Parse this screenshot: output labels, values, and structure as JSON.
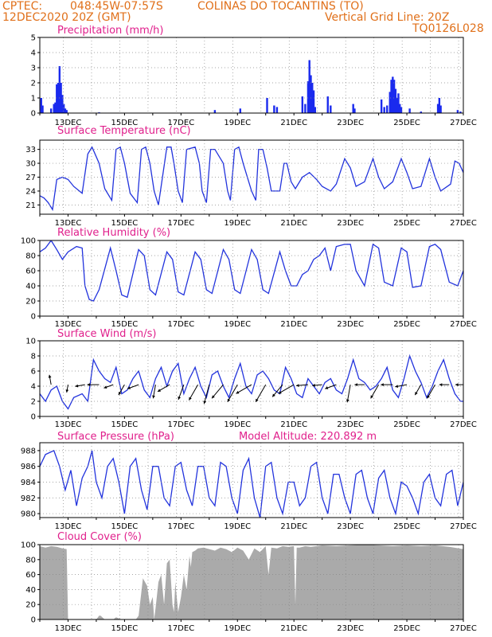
{
  "header": {
    "source": "CPTEC:",
    "coords": "048:45W-07:57S",
    "location": "COLINAS DO TOCANTINS (TO)",
    "datetime": "12DEC2020 20Z (GMT)",
    "grid_note": "Vertical Grid Line: 20Z",
    "run_code": "TQ0126L028"
  },
  "colors": {
    "header": "#e0701a",
    "title": "#e0208c",
    "line": "#2233dd",
    "bar": "#1a2aee",
    "cloud": "#aaaaaa"
  },
  "x_axis": {
    "start_day": 12,
    "end_day": 27,
    "tick_labels": [
      "13DEC",
      "15DEC",
      "17DEC",
      "19DEC",
      "21DEC",
      "23DEC",
      "25DEC",
      "27DEC"
    ]
  },
  "chart_data": [
    {
      "type": "bar",
      "title": "Precipitation (mm/h)",
      "ylim": [
        0,
        5
      ],
      "yticks": [
        "0",
        "1",
        "2",
        "3",
        "4",
        "5"
      ],
      "x": [
        12.05,
        12.1,
        12.4,
        12.5,
        12.55,
        12.6,
        12.65,
        12.7,
        12.75,
        12.8,
        12.85,
        12.9,
        12.95,
        14.1,
        18.2,
        19.1,
        20.05,
        20.3,
        20.4,
        21.3,
        21.4,
        21.5,
        21.55,
        21.6,
        21.65,
        21.7,
        21.75,
        22.2,
        22.3,
        23.1,
        23.15,
        24.1,
        24.2,
        24.3,
        24.4,
        24.45,
        24.5,
        24.55,
        24.6,
        24.65,
        24.7,
        24.75,
        24.8,
        25.1,
        25.5,
        26.1,
        26.15,
        26.2,
        26.8,
        26.9
      ],
      "values": [
        1.0,
        0.5,
        0.3,
        0.6,
        0.7,
        1.9,
        2.0,
        3.1,
        2.0,
        1.2,
        0.6,
        0.3,
        0.2,
        0.05,
        0.2,
        0.3,
        1.0,
        0.5,
        0.4,
        1.1,
        0.6,
        2.1,
        3.5,
        2.5,
        2.0,
        1.5,
        0.4,
        1.1,
        0.5,
        0.6,
        0.3,
        0.9,
        0.4,
        0.5,
        1.4,
        2.2,
        2.4,
        2.2,
        1.6,
        1.0,
        1.3,
        0.6,
        0.4,
        0.3,
        0.1,
        0.6,
        1.0,
        0.5,
        0.2,
        0.1
      ]
    },
    {
      "type": "line",
      "title": "Surface Temperature (nC)",
      "ylim": [
        19,
        35
      ],
      "yticks": [
        "21",
        "24",
        "27",
        "30",
        "33"
      ],
      "x": [
        12.0,
        12.15,
        12.3,
        12.45,
        12.6,
        12.8,
        13.0,
        13.2,
        13.5,
        13.7,
        13.85,
        14.1,
        14.3,
        14.55,
        14.7,
        14.85,
        15.0,
        15.2,
        15.45,
        15.6,
        15.75,
        15.9,
        16.05,
        16.2,
        16.5,
        16.65,
        16.75,
        16.9,
        17.05,
        17.2,
        17.5,
        17.65,
        17.75,
        17.9,
        18.05,
        18.2,
        18.5,
        18.65,
        18.75,
        18.9,
        19.05,
        19.2,
        19.5,
        19.65,
        19.75,
        19.9,
        20.05,
        20.2,
        20.5,
        20.65,
        20.75,
        20.9,
        21.05,
        21.3,
        21.55,
        21.8,
        22.0,
        22.3,
        22.5,
        22.8,
        23.0,
        23.2,
        23.5,
        23.8,
        24.0,
        24.2,
        24.5,
        24.8,
        25.0,
        25.2,
        25.5,
        25.8,
        26.0,
        26.2,
        26.55,
        26.7,
        26.85,
        27.0
      ],
      "values": [
        23,
        22.5,
        21.5,
        20,
        26.5,
        27,
        26.5,
        25,
        23.5,
        32,
        33.5,
        30,
        24.5,
        22,
        33,
        33.5,
        30,
        23.5,
        21.5,
        33,
        33.5,
        30,
        24,
        21,
        33.5,
        33.5,
        30,
        24,
        21.5,
        33,
        33.5,
        30,
        24,
        21.5,
        33,
        33,
        30,
        24,
        22,
        33,
        33.5,
        30,
        24,
        22,
        33,
        33,
        29,
        24,
        24,
        30,
        30,
        26,
        24.5,
        27,
        28,
        26.5,
        25,
        24,
        25.5,
        31,
        29,
        25,
        26,
        31,
        27,
        24.5,
        26,
        31,
        28,
        24.5,
        25,
        31,
        27,
        24,
        25.5,
        30.5,
        30,
        28
      ]
    },
    {
      "type": "line",
      "title": "Relative Humidity (%)",
      "ylim": [
        0,
        100
      ],
      "yticks": [
        "0",
        "20",
        "40",
        "60",
        "80",
        "100"
      ],
      "x": [
        12.0,
        12.2,
        12.4,
        12.6,
        12.8,
        13.0,
        13.3,
        13.5,
        13.6,
        13.75,
        13.9,
        14.1,
        14.5,
        14.7,
        14.9,
        15.1,
        15.5,
        15.7,
        15.9,
        16.1,
        16.5,
        16.7,
        16.9,
        17.1,
        17.5,
        17.7,
        17.9,
        18.1,
        18.5,
        18.7,
        18.9,
        19.1,
        19.5,
        19.7,
        19.9,
        20.1,
        20.5,
        20.7,
        20.9,
        21.1,
        21.3,
        21.5,
        21.7,
        21.9,
        22.1,
        22.3,
        22.5,
        22.8,
        23.0,
        23.2,
        23.5,
        23.8,
        24.0,
        24.2,
        24.5,
        24.8,
        25.0,
        25.2,
        25.5,
        25.8,
        26.0,
        26.2,
        26.5,
        26.8,
        27.0
      ],
      "values": [
        85,
        90,
        100,
        88,
        75,
        85,
        92,
        90,
        40,
        22,
        20,
        35,
        90,
        60,
        28,
        25,
        88,
        80,
        35,
        28,
        85,
        75,
        32,
        28,
        85,
        75,
        35,
        30,
        88,
        75,
        35,
        30,
        88,
        75,
        35,
        30,
        85,
        60,
        40,
        40,
        55,
        60,
        75,
        80,
        90,
        60,
        92,
        95,
        95,
        60,
        40,
        95,
        90,
        45,
        40,
        90,
        85,
        38,
        40,
        92,
        95,
        88,
        45,
        40,
        60
      ]
    },
    {
      "type": "line",
      "title": "Surface Wind (m/s)",
      "ylim": [
        0,
        10
      ],
      "yticks": [
        "0",
        "2",
        "4",
        "6",
        "8",
        "10"
      ],
      "x": [
        12.0,
        12.2,
        12.4,
        12.6,
        12.8,
        13.0,
        13.2,
        13.5,
        13.7,
        13.9,
        14.1,
        14.3,
        14.5,
        14.7,
        14.9,
        15.1,
        15.3,
        15.5,
        15.7,
        15.9,
        16.1,
        16.3,
        16.5,
        16.7,
        16.9,
        17.1,
        17.3,
        17.5,
        17.7,
        17.9,
        18.1,
        18.3,
        18.5,
        18.7,
        18.9,
        19.1,
        19.3,
        19.5,
        19.7,
        19.9,
        20.1,
        20.3,
        20.5,
        20.7,
        20.9,
        21.1,
        21.3,
        21.5,
        21.7,
        21.9,
        22.1,
        22.3,
        22.5,
        22.7,
        22.9,
        23.1,
        23.3,
        23.5,
        23.7,
        23.9,
        24.1,
        24.3,
        24.5,
        24.7,
        24.9,
        25.1,
        25.3,
        25.5,
        25.7,
        25.9,
        26.1,
        26.3,
        26.5,
        26.7,
        26.9,
        27.0
      ],
      "values": [
        3,
        2,
        3.5,
        4,
        2,
        1,
        2.5,
        3,
        2,
        7.5,
        6,
        5,
        4.5,
        6.5,
        3,
        3.5,
        5,
        6,
        3.5,
        2.5,
        5,
        6.5,
        4,
        6,
        7,
        3,
        5,
        6.5,
        4,
        2.5,
        5.5,
        6,
        4,
        2.5,
        5,
        7,
        4,
        3,
        5.5,
        6,
        5,
        3.5,
        3,
        6.5,
        5,
        3,
        2.5,
        5,
        4,
        3,
        4.5,
        5,
        3.5,
        3,
        5,
        7.5,
        5,
        4.5,
        3.5,
        4,
        5,
        6.5,
        3.5,
        2.5,
        5,
        8,
        6,
        4.5,
        2.5,
        4,
        6,
        7.5,
        5,
        3,
        2,
        2
      ],
      "barbs_day": [
        12.4,
        13.0,
        13.6,
        14.1,
        14.6,
        15.0,
        15.5,
        16.1,
        16.6,
        17.1,
        17.6,
        18.0,
        18.5,
        19.0,
        19.5,
        20.0,
        20.6,
        21.0,
        21.5,
        22.0,
        22.5,
        23.0,
        23.5,
        24.0,
        24.5,
        25.0,
        25.5,
        26.0,
        26.5,
        27.0
      ],
      "barbs_from_deg": [
        170,
        10,
        80,
        90,
        70,
        30,
        70,
        10,
        60,
        20,
        30,
        15,
        40,
        30,
        60,
        30,
        40,
        60,
        85,
        85,
        70,
        10,
        90,
        30,
        90,
        80,
        30,
        30,
        90,
        90
      ],
      "barbs_speed": [
        2.5,
        2,
        2.5,
        3,
        2.5,
        3,
        3,
        3.5,
        3.5,
        4,
        4.5,
        5,
        4.5,
        5,
        4.5,
        5,
        4,
        4.5,
        3,
        2.5,
        3,
        4.5,
        2.5,
        4,
        3,
        3,
        3,
        4,
        2.5,
        2
      ]
    },
    {
      "type": "line",
      "title": "Surface Pressure (hPa)",
      "subtitle": "Model Altitude: 220.892 m",
      "ylim": [
        979.5,
        989
      ],
      "yticks": [
        "980",
        "982",
        "984",
        "986",
        "988"
      ],
      "x": [
        12.0,
        12.2,
        12.5,
        12.7,
        12.9,
        13.1,
        13.3,
        13.5,
        13.7,
        13.85,
        14.0,
        14.2,
        14.4,
        14.6,
        14.8,
        15.0,
        15.2,
        15.4,
        15.6,
        15.8,
        16.0,
        16.2,
        16.4,
        16.6,
        16.8,
        17.0,
        17.2,
        17.4,
        17.6,
        17.8,
        18.0,
        18.2,
        18.4,
        18.6,
        18.8,
        19.0,
        19.2,
        19.4,
        19.6,
        19.8,
        20.0,
        20.2,
        20.4,
        20.6,
        20.8,
        21.0,
        21.2,
        21.4,
        21.6,
        21.8,
        22.0,
        22.2,
        22.4,
        22.6,
        22.8,
        23.0,
        23.2,
        23.4,
        23.6,
        23.8,
        24.0,
        24.2,
        24.4,
        24.6,
        24.8,
        25.0,
        25.2,
        25.4,
        25.6,
        25.8,
        26.0,
        26.2,
        26.4,
        26.6,
        26.8,
        27.0
      ],
      "values": [
        986,
        987.5,
        988,
        986,
        983,
        985.5,
        981,
        984.5,
        986,
        988,
        984,
        982,
        986,
        987,
        984,
        980,
        986,
        987,
        983,
        980.5,
        986,
        986,
        982,
        981,
        986,
        986.5,
        983,
        981,
        986,
        986,
        982,
        981,
        986.5,
        986,
        982,
        980,
        985.5,
        987,
        982,
        979.5,
        986,
        986.5,
        982,
        980,
        984,
        984,
        981,
        982,
        986,
        986.5,
        982,
        980,
        985,
        985,
        982,
        980,
        985,
        985.5,
        982,
        980,
        984.5,
        985.5,
        982,
        980,
        984,
        983.5,
        982,
        980,
        984,
        985,
        982,
        981,
        985,
        985.5,
        981,
        984
      ]
    },
    {
      "type": "area",
      "title": "Cloud Cover (%)",
      "ylim": [
        0,
        100
      ],
      "yticks": [
        "0",
        "20",
        "40",
        "60",
        "80",
        "100"
      ],
      "x": [
        12.0,
        12.2,
        12.4,
        12.6,
        12.8,
        12.95,
        13.0,
        13.5,
        14.0,
        14.1,
        14.15,
        14.3,
        14.5,
        14.6,
        14.7,
        14.9,
        15.0,
        15.4,
        15.5,
        15.6,
        15.65,
        15.8,
        15.9,
        16.0,
        16.05,
        16.1,
        16.2,
        16.3,
        16.4,
        16.5,
        16.6,
        16.7,
        16.75,
        16.8,
        16.9,
        17.0,
        17.1,
        17.2,
        17.3,
        17.35,
        17.4,
        17.5,
        17.6,
        17.8,
        18.0,
        18.2,
        18.4,
        18.6,
        18.8,
        19.0,
        19.2,
        19.4,
        19.6,
        19.8,
        20.0,
        20.1,
        20.2,
        20.4,
        20.6,
        20.8,
        21.0,
        21.05,
        21.1,
        21.2,
        21.4,
        21.6,
        21.8,
        22.0,
        22.5,
        23.0,
        23.5,
        24.0,
        24.5,
        25.0,
        25.5,
        26.0,
        26.5,
        27.0
      ],
      "values": [
        98,
        96,
        98,
        97,
        95,
        94,
        0,
        0,
        0,
        5,
        5,
        0,
        0,
        0,
        3,
        0,
        0,
        0,
        5,
        38,
        55,
        45,
        20,
        30,
        0,
        15,
        50,
        60,
        20,
        75,
        80,
        20,
        10,
        50,
        10,
        30,
        60,
        40,
        85,
        70,
        90,
        92,
        95,
        96,
        94,
        92,
        96,
        94,
        90,
        96,
        92,
        80,
        95,
        90,
        98,
        60,
        96,
        95,
        98,
        97,
        98,
        20,
        96,
        96,
        98,
        97,
        98,
        99,
        98,
        99,
        100,
        99,
        98,
        99,
        98,
        99,
        97,
        94
      ]
    }
  ]
}
